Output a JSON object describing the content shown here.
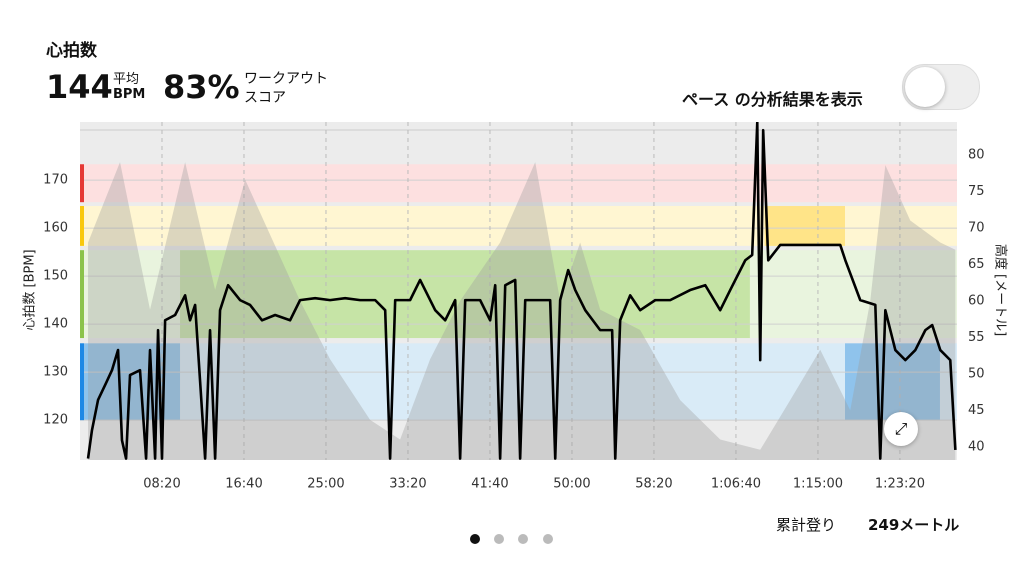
{
  "header": {
    "title": "心拍数",
    "avg_value": "144",
    "avg_label": "平均",
    "avg_unit": "BPM",
    "score_value": "83%",
    "score_label_1": "ワークアウト",
    "score_label_2": "スコア",
    "toggle_label": "ペース の分析結果を表示"
  },
  "footer": {
    "label": "累計登り",
    "value": "249メートル"
  },
  "chart_data": {
    "type": "line",
    "ylabel": "心拍数 [BPM]",
    "y2label": "高度 [メートル]",
    "xlim": [
      0,
      5348
    ],
    "ylim": [
      111.7,
      182.1
    ],
    "y2lim": [
      38.2,
      84.5
    ],
    "xticks": [
      {
        "value": 500,
        "label": "08:20"
      },
      {
        "value": 1000,
        "label": "16:40"
      },
      {
        "value": 1500,
        "label": "25:00"
      },
      {
        "value": 2000,
        "label": "33:20"
      },
      {
        "value": 2500,
        "label": "41:40"
      },
      {
        "value": 3000,
        "label": "50:00"
      },
      {
        "value": 3500,
        "label": "58:20"
      },
      {
        "value": 4000,
        "label": "1:06:40"
      },
      {
        "value": 4500,
        "label": "1:15:00"
      },
      {
        "value": 5000,
        "label": "1:23:20"
      }
    ],
    "yticks": [
      120,
      130,
      140,
      150,
      160,
      170
    ],
    "y2ticks": [
      40,
      45,
      50,
      55,
      60,
      65,
      70,
      75,
      80
    ],
    "grid": true,
    "zones": [
      {
        "from": 165.4,
        "to": 173.3,
        "light": "#fde0e0",
        "edge": "#e53935"
      },
      {
        "from": 156.3,
        "to": 164.6,
        "light": "#fff6d2",
        "edge": "#f9c80e"
      },
      {
        "from": 137.1,
        "to": 155.4,
        "light": "#e9f4de",
        "edge": "#8bc34a"
      },
      {
        "from": 120,
        "to": 136,
        "light": "#d9ebf7",
        "edge": "#1e88e5"
      }
    ],
    "highlights": [
      {
        "x": [
          0,
          610
        ],
        "from": 120,
        "to": 136,
        "color": "#8fc3ec"
      },
      {
        "x": [
          610,
          4085
        ],
        "from": 137.1,
        "to": 155.4,
        "color": "#c6e4a6"
      },
      {
        "x": [
          4175,
          4665
        ],
        "from": 156.3,
        "to": 164.6,
        "color": "#ffe488"
      },
      {
        "x": [
          4665,
          5244
        ],
        "from": 120,
        "to": 136,
        "color": "#8fc3ec"
      }
    ],
    "elevation": {
      "axis": "y2",
      "color": "#9a9a9a",
      "x": [
        49,
        244,
        427,
        641,
        824,
        1007,
        1342,
        1525,
        1769,
        1952,
        2135,
        2318,
        2562,
        2776,
        2928,
        3050,
        3172,
        3416,
        3660,
        3904,
        4148,
        4331,
        4514,
        4697,
        4819,
        4911,
        5063,
        5246,
        5338
      ],
      "values": [
        68,
        79,
        58.8,
        79,
        61.5,
        76.6,
        60,
        52,
        43.7,
        41,
        52,
        60,
        68,
        79,
        60,
        68,
        58.8,
        56,
        46.4,
        41,
        39.6,
        46.4,
        53.3,
        45,
        60,
        78.6,
        71,
        68,
        67
      ]
    },
    "heart_rate": {
      "color": "#000000",
      "x": [
        49,
        73,
        110,
        153,
        195,
        232,
        256,
        281,
        305,
        366,
        403,
        427,
        458,
        476,
        500,
        519,
        580,
        641,
        671,
        702,
        763,
        793,
        824,
        854,
        903,
        976,
        1037,
        1110,
        1190,
        1281,
        1342,
        1434,
        1525,
        1617,
        1708,
        1800,
        1861,
        1891,
        1922,
        2013,
        2074,
        2166,
        2227,
        2288,
        2318,
        2349,
        2440,
        2501,
        2532,
        2562,
        2593,
        2654,
        2684,
        2715,
        2806,
        2867,
        2898,
        2928,
        2977,
        3020,
        3081,
        3172,
        3245,
        3264,
        3294,
        3355,
        3416,
        3508,
        3599,
        3721,
        3813,
        3904,
        3965,
        4057,
        4099,
        4130,
        4148,
        4166,
        4197,
        4270,
        4392,
        4514,
        4636,
        4667,
        4758,
        4850,
        4880,
        4911,
        4972,
        5033,
        5094,
        5155,
        5197,
        5246,
        5307,
        5338
      ],
      "values": [
        112,
        117.9,
        124.2,
        127.3,
        130.4,
        134.6,
        115.8,
        112,
        129.4,
        130.4,
        112,
        134.6,
        112,
        138.75,
        112,
        140.8,
        141.9,
        146,
        140.8,
        144,
        112,
        138.75,
        112,
        142.9,
        148.1,
        145,
        144,
        140.8,
        141.9,
        140.8,
        145,
        145.4,
        145,
        145.4,
        145,
        145,
        142.9,
        112,
        145,
        145,
        149.2,
        142.9,
        140.8,
        145,
        112,
        145,
        145,
        140.8,
        148.1,
        112,
        148.1,
        149.2,
        112,
        145,
        145,
        145,
        112,
        145,
        151.25,
        147.1,
        142.9,
        138.75,
        138.75,
        112,
        140.8,
        146,
        142.9,
        145,
        145,
        147.1,
        148.1,
        142.9,
        147.1,
        153.3,
        154.4,
        182,
        132.5,
        180.4,
        153.3,
        156.5,
        156.5,
        156.5,
        156.5,
        153.3,
        145,
        144,
        112,
        142.9,
        134.6,
        132.5,
        134.6,
        138.75,
        139.8,
        134.6,
        132.5,
        113.8
      ]
    }
  }
}
